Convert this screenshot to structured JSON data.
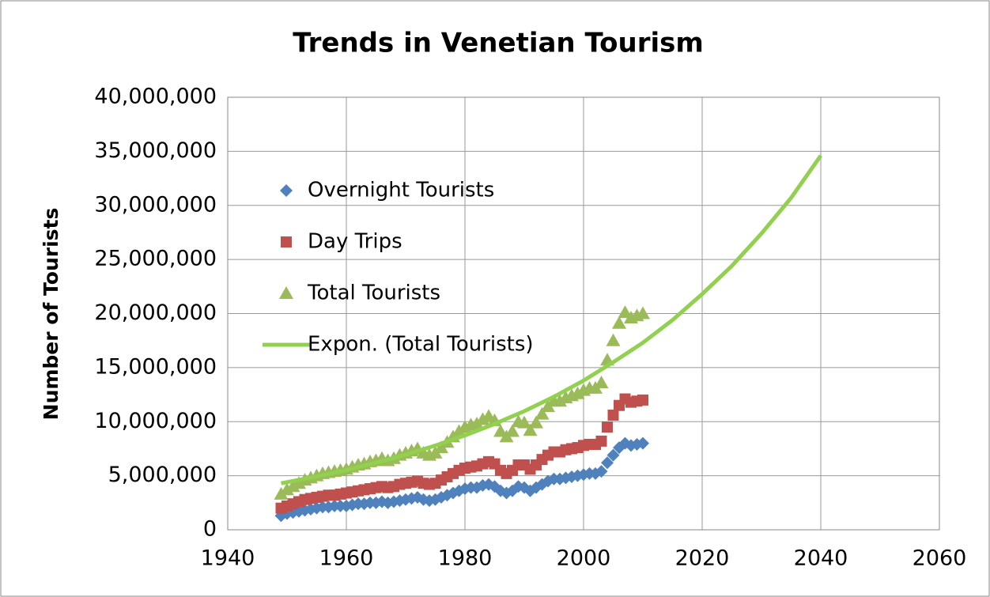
{
  "chart_data": {
    "type": "scatter",
    "title": "Trends in Venetian Tourism",
    "y_label": "Number of Tourists",
    "xlim": [
      1940,
      2060
    ],
    "xticks": [
      1940,
      1960,
      1980,
      2000,
      2020,
      2040,
      2060
    ],
    "ylim": [
      0,
      40000000
    ],
    "yticks": [
      0,
      {
        "value": 5000000,
        "label": "5,000,000"
      },
      {
        "value": 10000000,
        "label": "10,000,000"
      },
      {
        "value": 15000000,
        "label": "15,000,000"
      },
      {
        "value": 20000000,
        "label": "20,000,000"
      },
      {
        "value": 25000000,
        "label": "25,000,000"
      },
      {
        "value": 30000000,
        "label": "30,000,000"
      },
      {
        "value": 35000000,
        "label": "35,000,000"
      },
      {
        "value": 40000000,
        "label": "40,000,000"
      }
    ],
    "grid": true,
    "legend": "upper left",
    "series": [
      {
        "name": "Overnight Tourists",
        "color": "#4f81bd",
        "marker": "diamond",
        "x": [
          1949,
          1950,
          1951,
          1952,
          1953,
          1954,
          1955,
          1956,
          1957,
          1958,
          1959,
          1960,
          1961,
          1962,
          1963,
          1964,
          1965,
          1966,
          1967,
          1968,
          1969,
          1970,
          1971,
          1972,
          1973,
          1974,
          1975,
          1976,
          1977,
          1978,
          1979,
          1980,
          1981,
          1982,
          1983,
          1984,
          1985,
          1986,
          1987,
          1988,
          1989,
          1990,
          1991,
          1992,
          1993,
          1994,
          1995,
          1996,
          1997,
          1998,
          1999,
          2000,
          2001,
          2002,
          2003,
          2004,
          2005,
          2006,
          2007,
          2008,
          2009,
          2010
        ],
        "values": [
          1300000,
          1500000,
          1600000,
          1700000,
          1800000,
          1900000,
          2000000,
          2100000,
          2100000,
          2200000,
          2200000,
          2200000,
          2300000,
          2400000,
          2400000,
          2500000,
          2500000,
          2600000,
          2500000,
          2600000,
          2700000,
          2800000,
          2900000,
          3000000,
          2800000,
          2700000,
          2800000,
          3000000,
          3200000,
          3400000,
          3600000,
          3800000,
          3900000,
          3900000,
          4100000,
          4200000,
          4000000,
          3600000,
          3400000,
          3600000,
          4000000,
          3900000,
          3600000,
          3900000,
          4200000,
          4500000,
          4700000,
          4700000,
          4800000,
          4900000,
          5000000,
          5100000,
          5200000,
          5200000,
          5400000,
          6200000,
          6900000,
          7600000,
          8000000,
          7800000,
          7900000,
          8000000
        ]
      },
      {
        "name": "Day Trips",
        "color": "#c0504d",
        "marker": "square",
        "x": [
          1949,
          1950,
          1951,
          1952,
          1953,
          1954,
          1955,
          1956,
          1957,
          1958,
          1959,
          1960,
          1961,
          1962,
          1963,
          1964,
          1965,
          1966,
          1967,
          1968,
          1969,
          1970,
          1971,
          1972,
          1973,
          1974,
          1975,
          1976,
          1977,
          1978,
          1979,
          1980,
          1981,
          1982,
          1983,
          1984,
          1985,
          1986,
          1987,
          1988,
          1989,
          1990,
          1991,
          1992,
          1993,
          1994,
          1995,
          1996,
          1997,
          1998,
          1999,
          2000,
          2001,
          2002,
          2003,
          2004,
          2005,
          2006,
          2007,
          2008,
          2009,
          2010
        ],
        "values": [
          2000000,
          2200000,
          2400000,
          2600000,
          2800000,
          2900000,
          3000000,
          3100000,
          3200000,
          3200000,
          3300000,
          3400000,
          3500000,
          3600000,
          3700000,
          3800000,
          3900000,
          4000000,
          3900000,
          4000000,
          4200000,
          4300000,
          4400000,
          4500000,
          4300000,
          4200000,
          4300000,
          4600000,
          4900000,
          5200000,
          5500000,
          5700000,
          5800000,
          5900000,
          6100000,
          6300000,
          6100000,
          5500000,
          5200000,
          5500000,
          6000000,
          6000000,
          5600000,
          6000000,
          6500000,
          6900000,
          7200000,
          7200000,
          7400000,
          7500000,
          7600000,
          7800000,
          7900000,
          7900000,
          8200000,
          9500000,
          10600000,
          11500000,
          12100000,
          11800000,
          11900000,
          12000000
        ]
      },
      {
        "name": "Total Tourists",
        "color": "#9bbb59",
        "marker": "triangle",
        "x": [
          1949,
          1950,
          1951,
          1952,
          1953,
          1954,
          1955,
          1956,
          1957,
          1958,
          1959,
          1960,
          1961,
          1962,
          1963,
          1964,
          1965,
          1966,
          1967,
          1968,
          1969,
          1970,
          1971,
          1972,
          1973,
          1974,
          1975,
          1976,
          1977,
          1978,
          1979,
          1980,
          1981,
          1982,
          1983,
          1984,
          1985,
          1986,
          1987,
          1988,
          1989,
          1990,
          1991,
          1992,
          1993,
          1994,
          1995,
          1996,
          1997,
          1998,
          1999,
          2000,
          2001,
          2002,
          2003,
          2004,
          2005,
          2006,
          2007,
          2008,
          2009,
          2010
        ],
        "values": [
          3300000,
          3700000,
          4000000,
          4300000,
          4600000,
          4800000,
          5000000,
          5200000,
          5300000,
          5400000,
          5500000,
          5600000,
          5800000,
          6000000,
          6100000,
          6300000,
          6400000,
          6600000,
          6400000,
          6600000,
          6900000,
          7100000,
          7300000,
          7500000,
          7100000,
          6900000,
          7100000,
          7600000,
          8100000,
          8600000,
          9100000,
          9500000,
          9700000,
          9800000,
          10200000,
          10500000,
          10100000,
          9100000,
          8600000,
          9100000,
          10000000,
          9900000,
          9200000,
          9900000,
          10700000,
          11400000,
          11900000,
          11900000,
          12200000,
          12400000,
          12600000,
          12900000,
          13100000,
          13100000,
          13600000,
          15700000,
          17500000,
          19100000,
          20100000,
          19600000,
          19800000,
          20000000
        ]
      },
      {
        "name": "Expon. (Total Tourists)",
        "color": "#92d050",
        "marker": "line",
        "x": [
          1949,
          1955,
          1960,
          1965,
          1970,
          1975,
          1980,
          1985,
          1990,
          1995,
          2000,
          2005,
          2010,
          2015,
          2020,
          2025,
          2030,
          2035,
          2040
        ],
        "values": [
          4300000,
          4930000,
          5530000,
          6200000,
          6950000,
          7790000,
          8730000,
          9790000,
          10970000,
          12300000,
          13800000,
          15500000,
          17300000,
          19400000,
          21800000,
          24400000,
          27400000,
          30700000,
          34600000
        ]
      }
    ]
  }
}
